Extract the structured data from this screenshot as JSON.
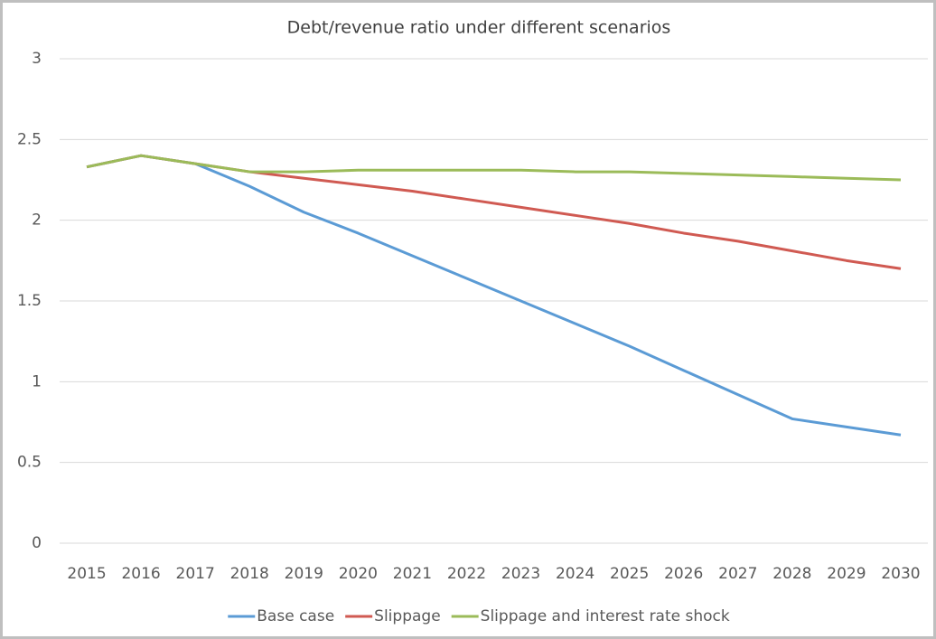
{
  "chart_data": {
    "type": "line",
    "title": "Debt/revenue ratio under different scenarios",
    "categories": [
      "2015",
      "2016",
      "2017",
      "2018",
      "2019",
      "2020",
      "2021",
      "2022",
      "2023",
      "2024",
      "2025",
      "2026",
      "2027",
      "2028",
      "2029",
      "2030"
    ],
    "series": [
      {
        "name": "Base case",
        "color": "#5b9bd5",
        "values": [
          2.33,
          2.4,
          2.35,
          2.21,
          2.05,
          1.92,
          1.78,
          1.64,
          1.5,
          1.36,
          1.22,
          1.07,
          0.92,
          0.77,
          0.72,
          0.67
        ]
      },
      {
        "name": "Slippage",
        "color": "#d05a52",
        "values": [
          2.33,
          2.4,
          2.35,
          2.3,
          2.26,
          2.22,
          2.18,
          2.13,
          2.08,
          2.03,
          1.98,
          1.92,
          1.87,
          1.81,
          1.75,
          1.7
        ]
      },
      {
        "name": "Slippage and interest rate shock",
        "color": "#9bbb59",
        "values": [
          2.33,
          2.4,
          2.35,
          2.3,
          2.3,
          2.31,
          2.31,
          2.31,
          2.31,
          2.3,
          2.3,
          2.29,
          2.28,
          2.27,
          2.26,
          2.25
        ]
      }
    ],
    "ylim": [
      0,
      3
    ],
    "yticks": [
      0,
      0.5,
      1,
      1.5,
      2,
      2.5,
      3
    ],
    "grid": true,
    "legend": "bottom"
  }
}
